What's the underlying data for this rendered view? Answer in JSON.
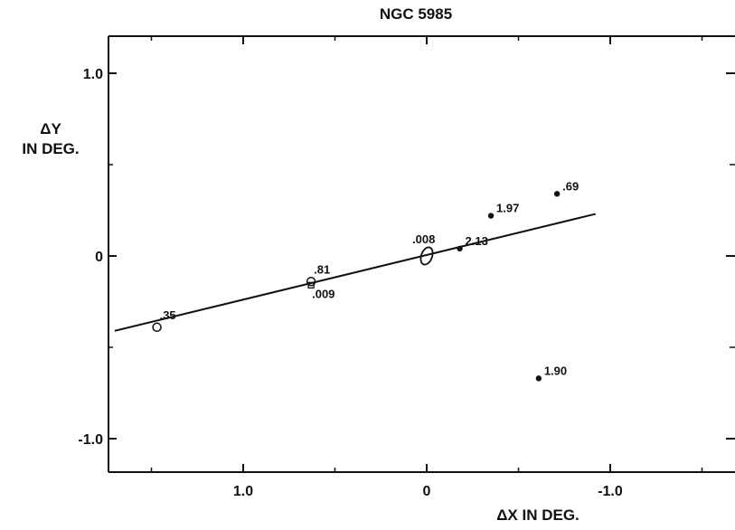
{
  "chart_data": {
    "type": "scatter",
    "title": "NGC 5985",
    "xlabel": "ΔX IN DEG.",
    "ylabel_lines": [
      "ΔY",
      "IN DEG."
    ],
    "xlim": [
      1.7,
      -1.7
    ],
    "ylim": [
      -1.2,
      1.2
    ],
    "x_ticks": [
      1.0,
      0,
      -1.0
    ],
    "x_tick_labels": [
      "1.0",
      "0",
      "-1.0"
    ],
    "y_ticks": [
      1.0,
      0,
      -1.0
    ],
    "y_tick_labels": [
      "1.0",
      "0",
      "-1.0"
    ],
    "minor_x_ticks": [
      -1.5,
      -0.5,
      0.5,
      1.5
    ],
    "minor_y_ticks": [
      0.5,
      -0.5
    ],
    "line": {
      "x": [
        1.7,
        -0.92
      ],
      "y": [
        -0.41,
        0.23
      ]
    },
    "points": [
      {
        "label": ".35",
        "x": 1.47,
        "y": -0.39,
        "marker": "open-circle"
      },
      {
        "label": ".81",
        "x": 0.63,
        "y": -0.14,
        "marker": "open-circle"
      },
      {
        "label": ".009",
        "x": 0.63,
        "y": -0.16,
        "marker": "open-square"
      },
      {
        "label": ".008",
        "x": 0.0,
        "y": 0.0,
        "marker": "open-ellipse"
      },
      {
        "label": "2.13",
        "x": -0.18,
        "y": 0.04,
        "marker": "filled-dot"
      },
      {
        "label": "1.97",
        "x": -0.35,
        "y": 0.22,
        "marker": "filled-dot"
      },
      {
        "label": ".69",
        "x": -0.71,
        "y": 0.34,
        "marker": "filled-dot"
      },
      {
        "label": "1.90",
        "x": -0.61,
        "y": -0.67,
        "marker": "filled-dot"
      }
    ]
  }
}
